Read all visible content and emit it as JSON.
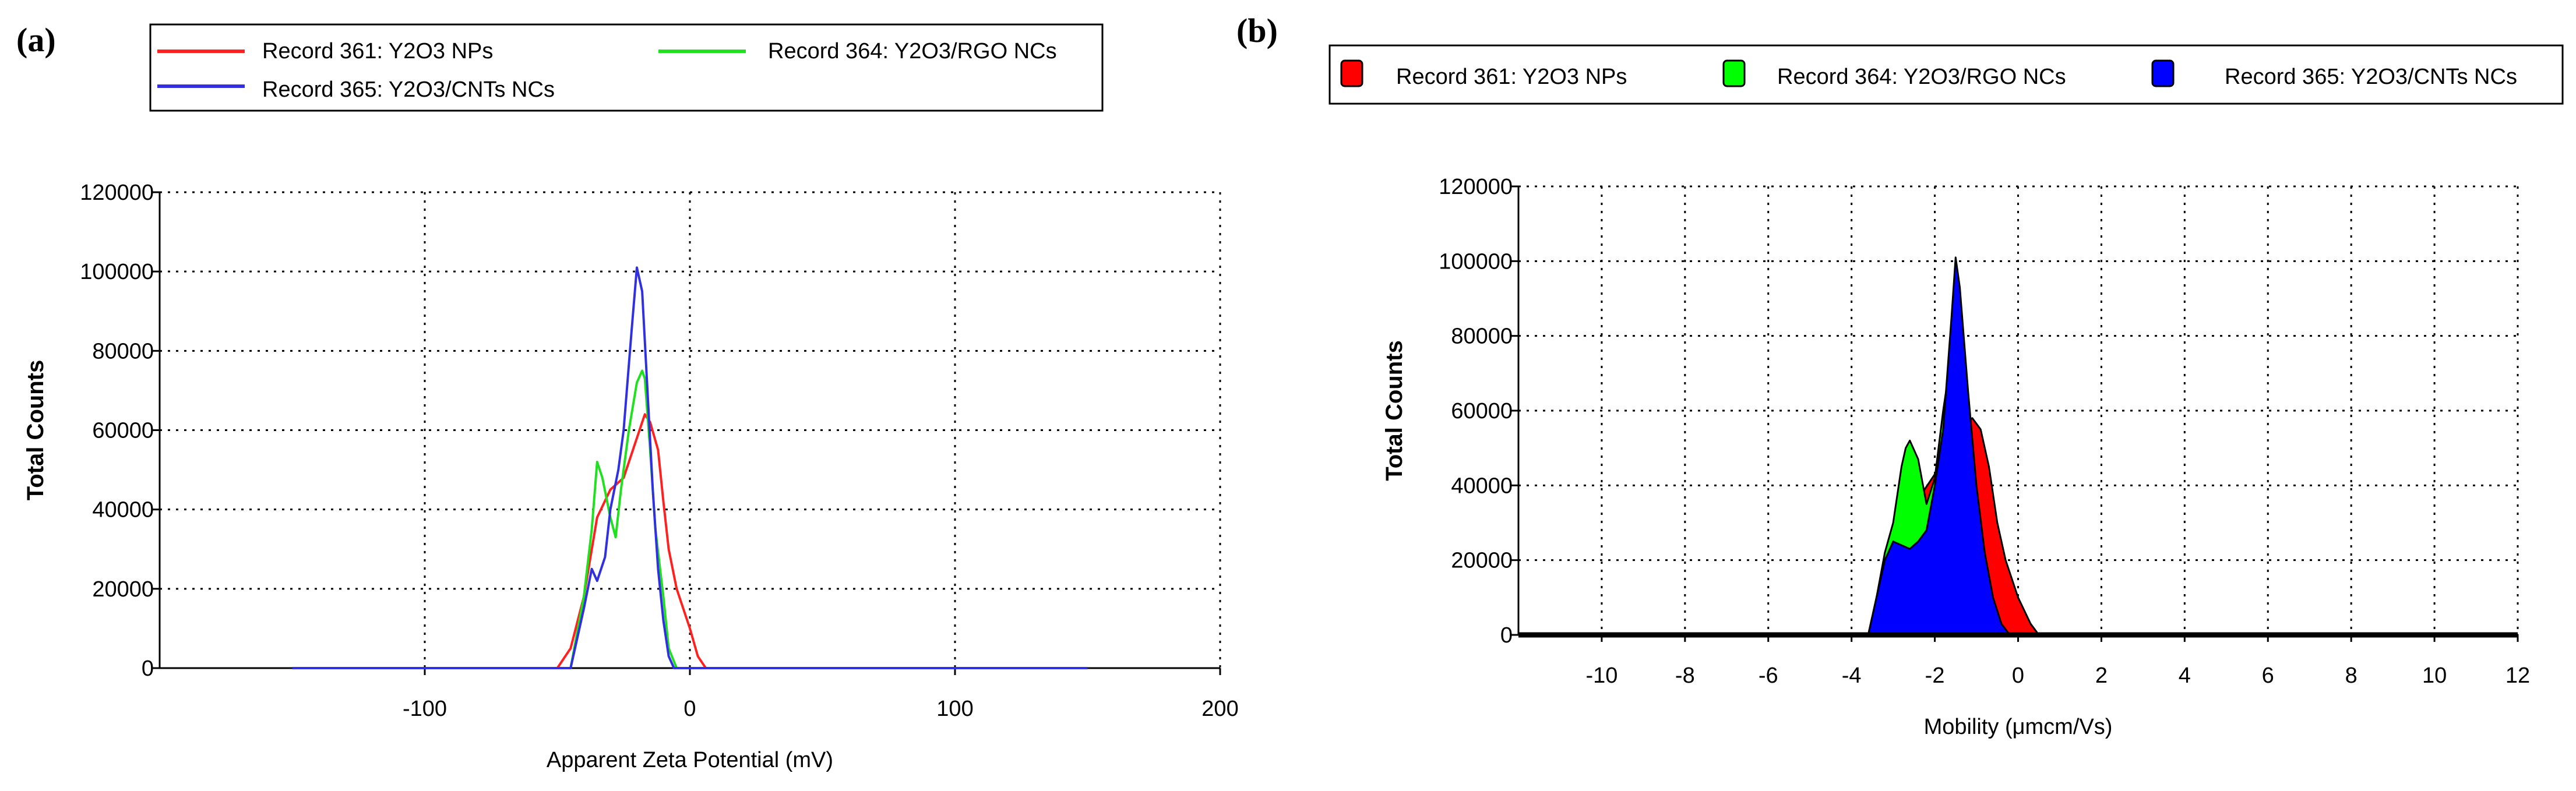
{
  "figure": {
    "panel_a_label": "(a)",
    "panel_b_label": "(b)"
  },
  "chart_data": [
    {
      "id": "a",
      "type": "line",
      "xlabel": "Apparent Zeta Potential (mV)",
      "ylabel": "Total Counts",
      "xlim": [
        -200,
        200
      ],
      "ylim": [
        0,
        120000
      ],
      "xticks": [
        -100,
        0,
        100,
        200
      ],
      "yticks": [
        0,
        20000,
        40000,
        60000,
        80000,
        100000,
        120000
      ],
      "legend": [
        "Record 361: Y2O3 NPs",
        "Record 364: Y2O3/RGO NCs",
        "Record 365: Y2O3/CNTs NCs"
      ],
      "series": [
        {
          "name": "Record 361: Y2O3 NPs",
          "color": "#ff2020",
          "x": [
            -150,
            -50,
            -45,
            -40,
            -35,
            -30,
            -25,
            -20,
            -17,
            -15,
            -12,
            -10,
            -8,
            -5,
            0,
            3,
            6,
            150
          ],
          "y": [
            0,
            0,
            5000,
            18000,
            38000,
            45000,
            48000,
            58000,
            64000,
            62000,
            55000,
            42000,
            30000,
            20000,
            10000,
            3000,
            0,
            0
          ]
        },
        {
          "name": "Record 364: Y2O3/RGO NCs",
          "color": "#20e020",
          "x": [
            -150,
            -45,
            -40,
            -37,
            -35,
            -33,
            -30,
            -28,
            -26,
            -23,
            -20,
            -18,
            -17,
            -15,
            -13,
            -10,
            -8,
            -5,
            150
          ],
          "y": [
            0,
            0,
            18000,
            35000,
            52000,
            48000,
            38000,
            33000,
            45000,
            60000,
            72000,
            75000,
            73000,
            55000,
            35000,
            18000,
            5000,
            0,
            0
          ]
        },
        {
          "name": "Record 365: Y2O3/CNTs NCs",
          "color": "#3030e0",
          "x": [
            -150,
            -45,
            -40,
            -37,
            -35,
            -32,
            -30,
            -27,
            -25,
            -22,
            -20,
            -18,
            -16,
            -14,
            -12,
            -10,
            -8,
            -6,
            150
          ],
          "y": [
            0,
            0,
            15000,
            25000,
            22000,
            28000,
            40000,
            50000,
            60000,
            85000,
            101000,
            95000,
            70000,
            45000,
            25000,
            12000,
            3000,
            0,
            0
          ]
        }
      ]
    },
    {
      "id": "b",
      "type": "area",
      "xlabel": "Mobility (μmcm/Vs)",
      "ylabel": "Total Counts",
      "xlim": [
        -12,
        12
      ],
      "ylim": [
        0,
        120000
      ],
      "xticks": [
        -10,
        -8,
        -6,
        -4,
        -2,
        0,
        2,
        4,
        6,
        8,
        10,
        12
      ],
      "yticks": [
        0,
        20000,
        40000,
        60000,
        80000,
        100000,
        120000
      ],
      "legend": [
        "Record 361: Y2O3 NPs",
        "Record 364: Y2O3/RGO NCs",
        "Record 365: Y2O3/CNTs NCs"
      ],
      "series": [
        {
          "name": "Record 361: Y2O3 NPs",
          "color": "#ff0000",
          "x": [
            -11.5,
            -3.6,
            -3.4,
            -3.2,
            -3.0,
            -2.8,
            -2.6,
            -2.3,
            -2.0,
            -1.7,
            -1.5,
            -1.3,
            -1.1,
            -0.9,
            -0.7,
            -0.5,
            -0.3,
            0.0,
            0.3,
            0.5,
            12
          ],
          "y": [
            0,
            0,
            10000,
            20000,
            24000,
            27000,
            32000,
            38000,
            43000,
            46000,
            49000,
            56000,
            58000,
            55000,
            45000,
            30000,
            20000,
            10000,
            3000,
            0,
            0
          ]
        },
        {
          "name": "Record 364: Y2O3/RGO NCs",
          "color": "#00ff00",
          "x": [
            -11.5,
            -3.6,
            -3.4,
            -3.2,
            -3.0,
            -2.8,
            -2.7,
            -2.6,
            -2.4,
            -2.2,
            -2.0,
            -1.8,
            -1.6,
            -1.4,
            -1.2,
            -1.0,
            -0.8,
            -0.6,
            -0.4,
            12
          ],
          "y": [
            0,
            0,
            10000,
            22000,
            30000,
            45000,
            50000,
            52000,
            47000,
            35000,
            42000,
            60000,
            75000,
            72000,
            50000,
            30000,
            12000,
            3000,
            0,
            0
          ]
        },
        {
          "name": "Record 365: Y2O3/CNTs NCs",
          "color": "#0000ff",
          "x": [
            -11.5,
            -3.6,
            -3.4,
            -3.2,
            -3.0,
            -2.8,
            -2.6,
            -2.4,
            -2.2,
            -2.0,
            -1.8,
            -1.6,
            -1.5,
            -1.4,
            -1.2,
            -1.0,
            -0.8,
            -0.6,
            -0.4,
            -0.2,
            12
          ],
          "y": [
            0,
            0,
            10000,
            20000,
            25000,
            24000,
            23000,
            25000,
            28000,
            40000,
            55000,
            85000,
            101000,
            93000,
            65000,
            40000,
            22000,
            10000,
            3000,
            0,
            0
          ]
        }
      ]
    }
  ]
}
